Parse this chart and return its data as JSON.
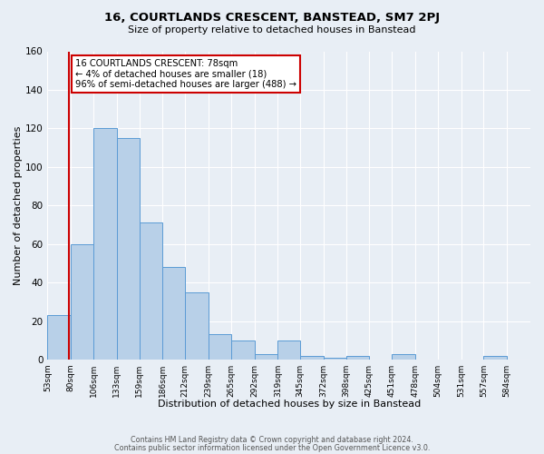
{
  "title": "16, COURTLANDS CRESCENT, BANSTEAD, SM7 2PJ",
  "subtitle": "Size of property relative to detached houses in Banstead",
  "xlabel": "Distribution of detached houses by size in Banstead",
  "ylabel": "Number of detached properties",
  "bar_values": [
    23,
    60,
    120,
    115,
    71,
    48,
    35,
    13,
    10,
    3,
    10,
    2,
    1,
    2,
    0,
    3,
    0,
    0,
    0,
    2
  ],
  "bin_labels": [
    "53sqm",
    "80sqm",
    "106sqm",
    "133sqm",
    "159sqm",
    "186sqm",
    "212sqm",
    "239sqm",
    "265sqm",
    "292sqm",
    "319sqm",
    "345sqm",
    "372sqm",
    "398sqm",
    "425sqm",
    "451sqm",
    "478sqm",
    "504sqm",
    "531sqm",
    "557sqm",
    "584sqm"
  ],
  "bar_color": "#b8d0e8",
  "bar_edge_color": "#5b9bd5",
  "marker_line_color": "#cc0000",
  "annotation_title": "16 COURTLANDS CRESCENT: 78sqm",
  "annotation_line1": "← 4% of detached houses are smaller (18)",
  "annotation_line2": "96% of semi-detached houses are larger (488) →",
  "annotation_box_color": "#cc0000",
  "ylim": [
    0,
    160
  ],
  "yticks": [
    0,
    20,
    40,
    60,
    80,
    100,
    120,
    140,
    160
  ],
  "footer1": "Contains HM Land Registry data © Crown copyright and database right 2024.",
  "footer2": "Contains public sector information licensed under the Open Government Licence v3.0.",
  "bin_edges": [
    53,
    80,
    106,
    133,
    159,
    186,
    212,
    239,
    265,
    292,
    319,
    345,
    372,
    398,
    425,
    451,
    478,
    504,
    531,
    557,
    584
  ],
  "bg_color": "#e8eef5"
}
